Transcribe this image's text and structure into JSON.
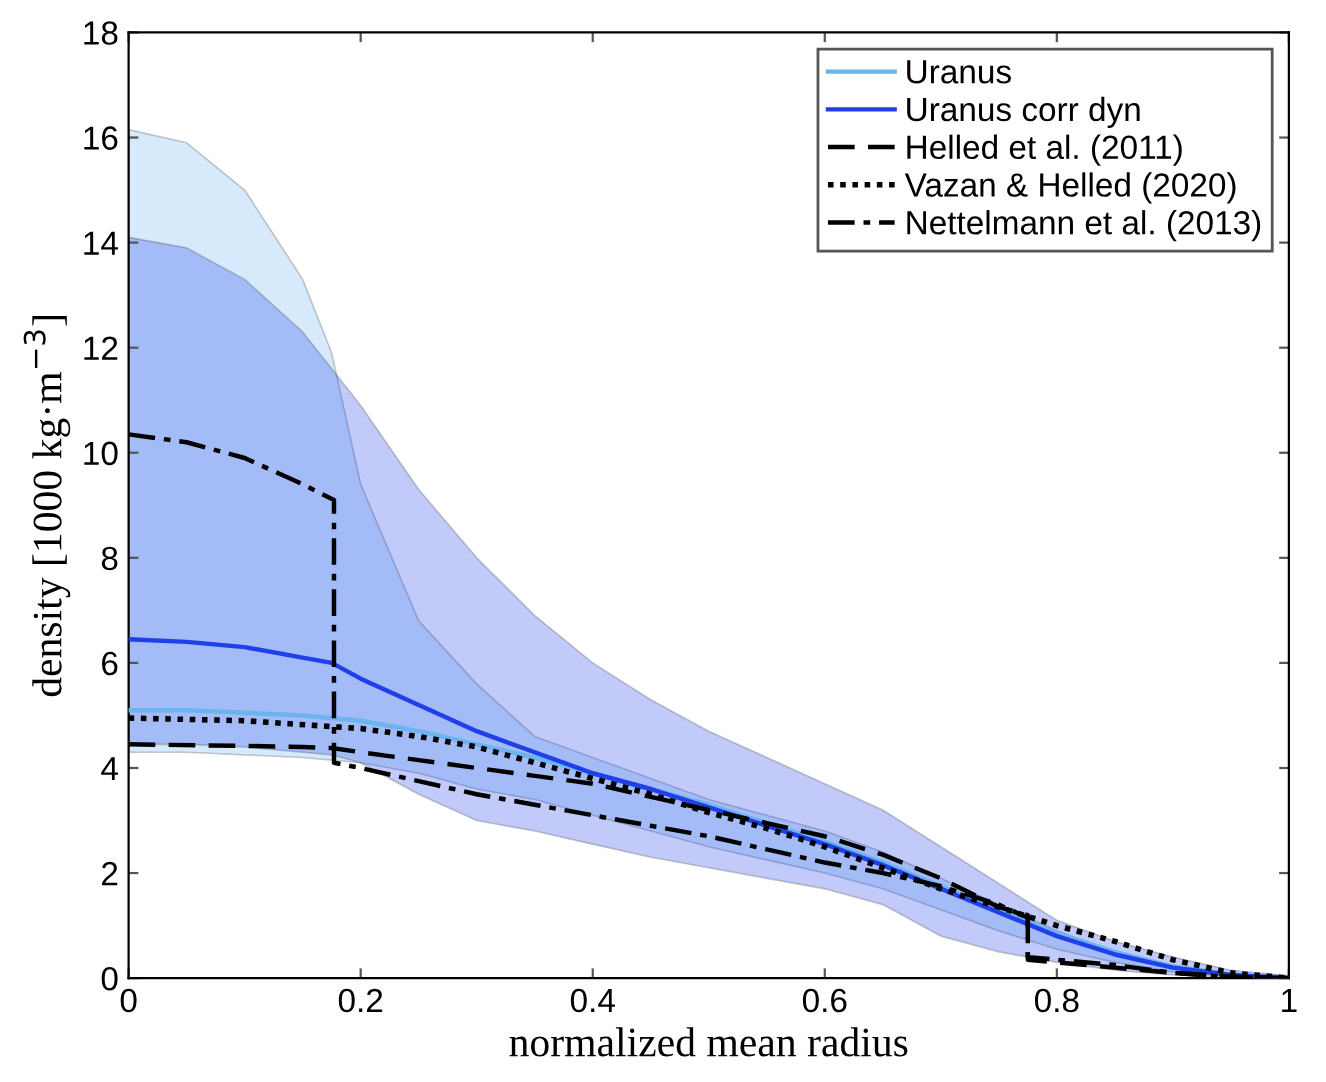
{
  "chart_data": {
    "type": "line",
    "xlabel": "normalized mean radius",
    "ylabel": "density [1000 kg·m$^{−3}$]",
    "x": [
      0,
      0.05,
      0.1,
      0.15,
      0.175,
      0.2,
      0.25,
      0.3,
      0.35,
      0.4,
      0.45,
      0.5,
      0.55,
      0.6,
      0.65,
      0.7,
      0.75,
      0.8,
      0.85,
      0.9,
      0.95,
      1.0
    ],
    "series": [
      {
        "name": "Uranus",
        "color": "#6cb4f0",
        "line_style": "solid",
        "values": [
          5.1,
          5.1,
          5.05,
          5.0,
          4.95,
          4.9,
          4.7,
          4.45,
          4.2,
          3.9,
          3.6,
          3.3,
          2.95,
          2.6,
          2.2,
          1.75,
          1.3,
          0.85,
          0.5,
          0.22,
          0.07,
          0
        ],
        "lower": [
          4.3,
          4.3,
          4.25,
          4.2,
          4.15,
          4.1,
          3.9,
          3.6,
          3.4,
          3.1,
          2.8,
          2.5,
          2.25,
          2.0,
          1.7,
          1.3,
          0.9,
          0.55,
          0.3,
          0.12,
          0.04,
          0
        ],
        "upper": [
          16.15,
          15.9,
          15.0,
          13.3,
          11.9,
          9.4,
          6.8,
          5.6,
          4.6,
          4.2,
          3.8,
          3.4,
          3.1,
          2.8,
          2.4,
          1.9,
          1.4,
          0.9,
          0.5,
          0.25,
          0.08,
          0.03
        ]
      },
      {
        "name": "Uranus corr dyn",
        "color": "#1f3fe8",
        "line_style": "solid",
        "values": [
          6.45,
          6.4,
          6.3,
          6.1,
          6.0,
          5.7,
          5.2,
          4.7,
          4.3,
          3.9,
          3.6,
          3.25,
          2.9,
          2.55,
          2.15,
          1.7,
          1.25,
          0.8,
          0.45,
          0.2,
          0.06,
          0
        ],
        "lower": [
          4.45,
          4.45,
          4.4,
          4.3,
          4.25,
          4.1,
          3.5,
          3.0,
          2.8,
          2.55,
          2.3,
          2.1,
          1.9,
          1.7,
          1.4,
          0.8,
          0.5,
          0.3,
          0.15,
          0.06,
          0.02,
          0
        ],
        "upper": [
          14.1,
          13.9,
          13.3,
          12.3,
          11.6,
          10.9,
          9.3,
          8.0,
          6.9,
          6.0,
          5.3,
          4.7,
          4.2,
          3.7,
          3.2,
          2.5,
          1.8,
          1.1,
          0.7,
          0.4,
          0.15,
          0.05
        ]
      },
      {
        "name": "Helled et al. (2011)",
        "color": "#000000",
        "line_style": "dashed",
        "x": [
          0,
          0.1,
          0.15,
          0.175,
          0.2,
          0.25,
          0.3,
          0.35,
          0.4,
          0.45,
          0.5,
          0.55,
          0.6,
          0.65,
          0.7,
          0.75,
          0.775,
          0.775,
          0.8,
          0.85,
          0.9,
          0.95,
          1.0
        ],
        "values": [
          4.45,
          4.42,
          4.4,
          4.38,
          4.3,
          4.15,
          4.0,
          3.85,
          3.7,
          3.45,
          3.2,
          2.95,
          2.7,
          2.35,
          1.9,
          1.35,
          1.2,
          0.35,
          0.3,
          0.2,
          0.1,
          0.03,
          0
        ]
      },
      {
        "name": "Vazan & Helled (2020)",
        "color": "#000000",
        "line_style": "dotted",
        "x": [
          0,
          0.1,
          0.2,
          0.25,
          0.3,
          0.35,
          0.4,
          0.45,
          0.5,
          0.55,
          0.6,
          0.65,
          0.7,
          0.75,
          0.8,
          0.85,
          0.9,
          0.95,
          1.0
        ],
        "values": [
          4.95,
          4.9,
          4.75,
          4.6,
          4.4,
          4.1,
          3.8,
          3.5,
          3.15,
          2.85,
          2.5,
          2.1,
          1.7,
          1.35,
          1.0,
          0.7,
          0.35,
          0.1,
          0
        ]
      },
      {
        "name": "Nettelmann et al. (2013)",
        "color": "#000000",
        "line_style": "dashdot",
        "x": [
          0,
          0.05,
          0.1,
          0.15,
          0.177,
          0.177,
          0.2,
          0.25,
          0.3,
          0.35,
          0.4,
          0.45,
          0.5,
          0.55,
          0.6,
          0.65,
          0.7,
          0.75,
          0.775,
          0.775,
          0.8,
          0.85,
          0.9,
          0.95,
          1.0
        ],
        "values": [
          10.35,
          10.2,
          9.9,
          9.4,
          9.1,
          4.1,
          4.0,
          3.75,
          3.5,
          3.3,
          3.1,
          2.9,
          2.7,
          2.45,
          2.2,
          2.0,
          1.75,
          1.4,
          1.15,
          0.4,
          0.35,
          0.25,
          0.1,
          0.02,
          0
        ]
      }
    ],
    "xlim": [
      0,
      1
    ],
    "ylim": [
      0,
      18
    ],
    "xticks": [
      0,
      0.2,
      0.4,
      0.6,
      0.8,
      1
    ],
    "yticks": [
      0,
      2,
      4,
      6,
      8,
      10,
      12,
      14,
      16,
      18
    ],
    "legend": "top right",
    "grid": false
  }
}
